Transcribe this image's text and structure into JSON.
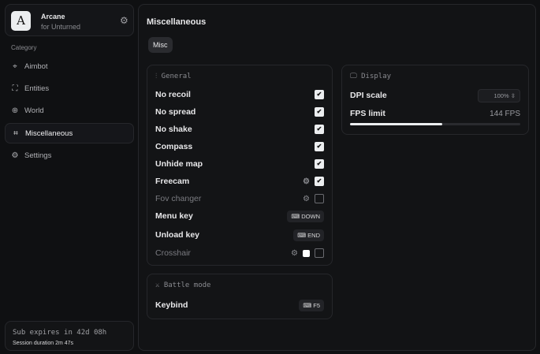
{
  "brand": {
    "name": "Arcane",
    "subtitle": "for Unturned",
    "logo": "A"
  },
  "sidebar": {
    "category": "Category",
    "items": [
      {
        "label": "Aimbot",
        "icon": "crosshair-icon"
      },
      {
        "label": "Entities",
        "icon": "entities-icon"
      },
      {
        "label": "World",
        "icon": "globe-icon"
      },
      {
        "label": "Miscellaneous",
        "icon": "grid-icon",
        "active": true
      },
      {
        "label": "Settings",
        "icon": "gear-icon"
      }
    ]
  },
  "subscription": {
    "expires": "Sub expires in 42d 08h",
    "session": "Session duration 2m 47s"
  },
  "main": {
    "title": "Miscellaneous",
    "tab": "Misc"
  },
  "general": {
    "title": "General",
    "rows": [
      {
        "label": "No recoil",
        "checked": true
      },
      {
        "label": "No spread",
        "checked": true
      },
      {
        "label": "No shake",
        "checked": true
      },
      {
        "label": "Compass",
        "checked": true
      },
      {
        "label": "Unhide map",
        "checked": true
      },
      {
        "label": "Freecam",
        "checked": true
      },
      {
        "label": "Fov changer",
        "checked": false
      },
      {
        "label": "Menu key",
        "key": "DOWN"
      },
      {
        "label": "Unload key",
        "key": "END"
      },
      {
        "label": "Crosshair",
        "checked": false
      }
    ]
  },
  "display": {
    "title": "Display",
    "dpi_label": "DPI scale",
    "dpi_value": "100%",
    "fps_label": "FPS limit",
    "fps_value": "144 FPS",
    "fps_fraction": 0.54
  },
  "battle": {
    "title": "Battle mode",
    "keybind_label": "Keybind",
    "keybind_key": "F5"
  },
  "colors": {
    "background": "#0f1012",
    "card": "#131416",
    "accent": "#eceef0"
  }
}
